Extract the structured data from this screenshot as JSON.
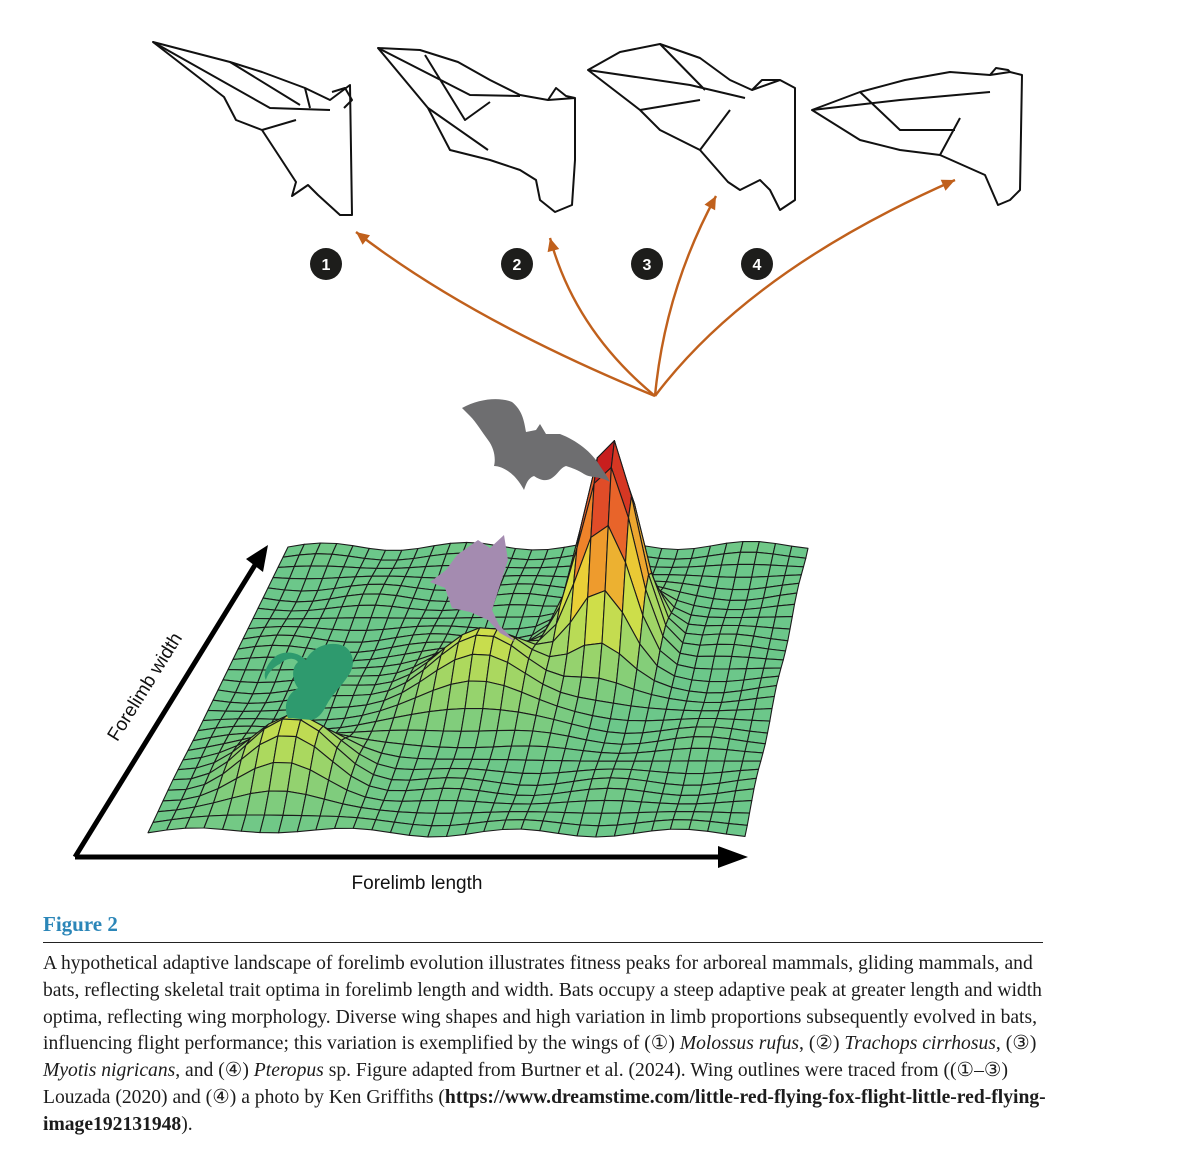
{
  "figure": {
    "x_axis_label": "Forelimb length",
    "y_axis_label": "Forelimb width",
    "wing_badges": [
      "1",
      "2",
      "3",
      "4"
    ],
    "colors": {
      "arrow": "#c0601c",
      "landscape_low": "#6cc78a",
      "landscape_mid": "#e8e23a",
      "landscape_high": "#f08a2a",
      "landscape_peak": "#c81e1e",
      "squirrel": "#2e9a6e",
      "glider": "#a48bb0",
      "bat_silhouette": "#6e6e70"
    },
    "icons": [
      "bat-wing-outline-icon",
      "squirrel-silhouette-icon",
      "sugar-glider-silhouette-icon",
      "bat-silhouette-icon"
    ]
  },
  "caption": {
    "label": "Figure 2",
    "text_1": "A hypothetical adaptive landscape of forelimb evolution illustrates fitness peaks for arboreal mammals, gliding mammals, and bats, reflecting skeletal trait optima in forelimb length and width. Bats occupy a steep adaptive peak at greater length and width optima, reflecting wing morphology. Diverse wing shapes and high variation in limb proportions subsequently evolved in bats, influencing flight performance; this variation is exemplified by the wings of (",
    "m1": "①",
    "text_2": ") ",
    "species_1": "Molossus rufus",
    "text_3": ", (",
    "m2": "②",
    "text_4": ") ",
    "species_2": "Trachops cirrhosus",
    "text_5": ", (",
    "m3": "③",
    "text_6": ") ",
    "species_3": "Myotis nigricans",
    "text_7": ", and (",
    "m4": "④",
    "text_8": ") ",
    "species_4": "Pteropus",
    "text_9": " sp. Figure adapted from Burtner et al. (2024). Wing outlines were traced from ((",
    "m5": "①",
    "text_10": "–",
    "m6": "③",
    "text_11": ") Louzada (2020) and (",
    "m7": "④",
    "text_12": ") a photo by Ken Griffiths (",
    "link": "https://www.dreamstime.com/little-red-flying-fox-flight-little-red-flying-image192131948",
    "text_13": ")."
  }
}
